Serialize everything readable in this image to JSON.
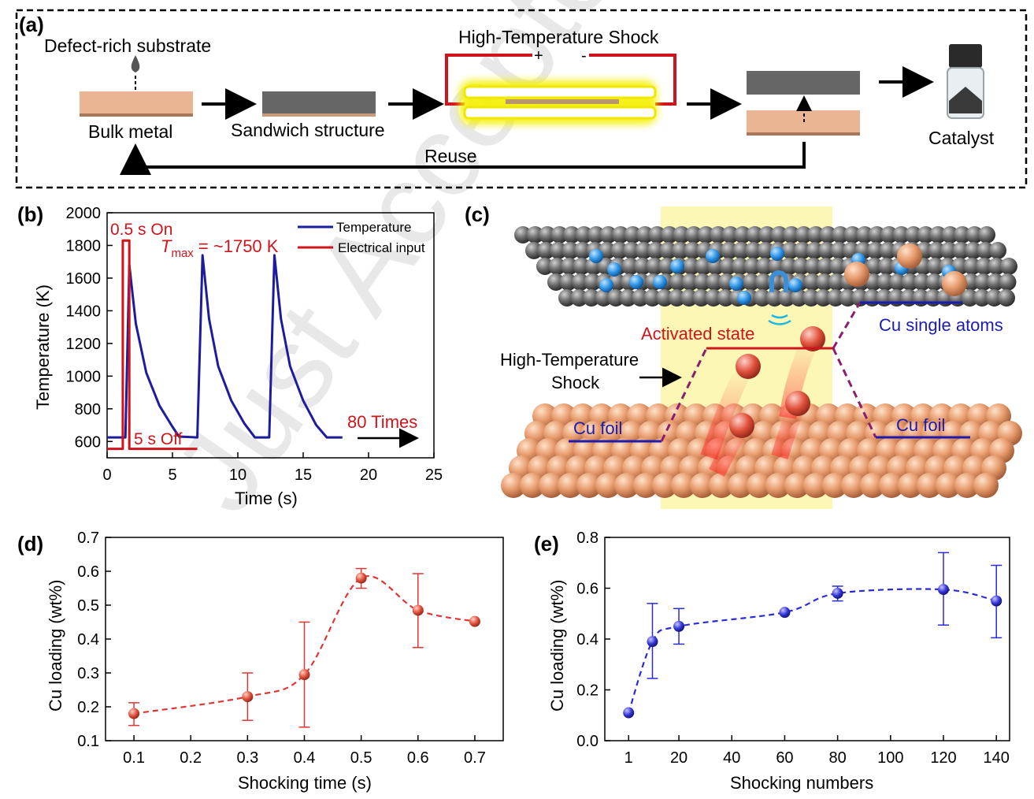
{
  "watermark": "Just Accepted",
  "panel_a": {
    "label": "(a)",
    "defect_substrate": "Defect-rich substrate",
    "bulk_metal": "Bulk metal",
    "sandwich": "Sandwich structure",
    "hts_title": "High-Temperature Shock",
    "plus": "+",
    "minus": "-",
    "catalyst": "Catalyst",
    "reuse": "Reuse",
    "colors": {
      "copper": "#e9b592",
      "gray": "#666666",
      "wire": "#d0141b",
      "glow": "#f5f000"
    }
  },
  "panel_b": {
    "label": "(b)",
    "on_label": "0.5 s On",
    "off_label": "5 s Off",
    "tmax_prefix": "T",
    "tmax_sub": "max",
    "tmax_value": " = ~1750 K",
    "times_label": "80 Times"
  },
  "panel_c": {
    "label": "(c)",
    "activated": "Activated state",
    "single_atoms": "Cu single atoms",
    "hts_line1": "High-Temperature",
    "hts_line2": "Shock",
    "cu_foil_left": "Cu foil",
    "cu_foil_right": "Cu foil"
  },
  "panel_d": {
    "label": "(d)"
  },
  "panel_e": {
    "label": "(e)"
  },
  "chart_data": [
    {
      "id": "b",
      "type": "line",
      "xlabel": "Time (s)",
      "ylabel": "Temperature (K)",
      "xlim": [
        0,
        25
      ],
      "ylim": [
        500,
        2000
      ],
      "xticks": [
        0,
        5,
        10,
        15,
        20,
        25
      ],
      "yticks": [
        600,
        800,
        1000,
        1200,
        1400,
        1600,
        1800,
        2000
      ],
      "series": [
        {
          "name": "Temperature",
          "color": "#1c1c9c",
          "x": [
            0,
            1.4,
            1.7,
            2.2,
            3,
            4,
            5,
            5.5,
            6.9,
            7.3,
            7.8,
            8.5,
            9.5,
            10.5,
            11.3,
            12.4,
            12.8,
            13.3,
            14,
            15,
            16,
            16.8,
            18
          ],
          "y": [
            625,
            625,
            1680,
            1320,
            1020,
            820,
            690,
            630,
            625,
            1740,
            1350,
            1060,
            850,
            710,
            625,
            625,
            1740,
            1350,
            1060,
            850,
            700,
            625,
            625
          ]
        },
        {
          "name": "Electrical input",
          "color": "#d0141b",
          "x": [
            0,
            1.2,
            1.2,
            1.7,
            1.7,
            6.9
          ],
          "y": [
            555,
            555,
            1830,
            1830,
            555,
            555
          ]
        }
      ]
    },
    {
      "id": "d",
      "type": "scatter",
      "xlabel": "Shocking time (s)",
      "ylabel": "Cu loading (wt%)",
      "xlim": [
        0.05,
        0.75
      ],
      "ylim": [
        0.1,
        0.7
      ],
      "xticks": [
        0.1,
        0.2,
        0.3,
        0.4,
        0.5,
        0.6,
        0.7
      ],
      "yticks": [
        0.1,
        0.2,
        0.3,
        0.4,
        0.5,
        0.6,
        0.7
      ],
      "color": "#e03535",
      "x": [
        0.1,
        0.3,
        0.4,
        0.5,
        0.6,
        0.7
      ],
      "y": [
        0.18,
        0.23,
        0.295,
        0.58,
        0.485,
        0.452
      ],
      "err_low": [
        0.145,
        0.16,
        0.14,
        0.55,
        0.375,
        0.452
      ],
      "err_high": [
        0.212,
        0.3,
        0.45,
        0.608,
        0.593,
        0.452
      ]
    },
    {
      "id": "e",
      "type": "scatter",
      "xlabel": "Shocking numbers",
      "ylabel": "Cu loading (wt%)",
      "xlim": [
        -8,
        145
      ],
      "ylim": [
        0,
        0.8
      ],
      "xticks": [
        1,
        20,
        40,
        60,
        80,
        100,
        120,
        140
      ],
      "yticks": [
        0.0,
        0.2,
        0.4,
        0.6,
        0.8
      ],
      "color": "#2a2ad6",
      "x": [
        1,
        10,
        20,
        60,
        80,
        120,
        140
      ],
      "y": [
        0.11,
        0.39,
        0.45,
        0.505,
        0.58,
        0.595,
        0.55
      ],
      "err_low": [
        0.11,
        0.245,
        0.38,
        0.505,
        0.55,
        0.455,
        0.405
      ],
      "err_high": [
        0.11,
        0.54,
        0.52,
        0.505,
        0.608,
        0.74,
        0.69
      ]
    }
  ]
}
